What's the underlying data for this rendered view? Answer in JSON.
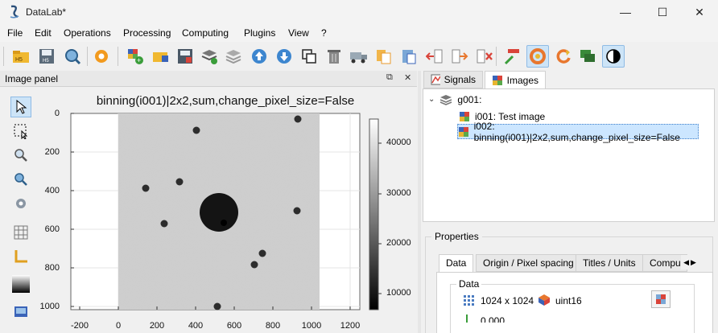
{
  "window": {
    "title": "DataLab*",
    "min": "—",
    "max": "☐",
    "close": "✕"
  },
  "menu": [
    "File",
    "Edit",
    "Operations",
    "Processing",
    "Computing",
    "Plugins",
    "View",
    "?"
  ],
  "image_panel": {
    "title": "Image panel",
    "plot_title": "binning(i001)|2x2,sum,change_pixel_size=False",
    "y_ticks": [
      "0",
      "200",
      "400",
      "600",
      "800",
      "1000"
    ],
    "x_ticks": [
      "-200",
      "0",
      "200",
      "400",
      "600",
      "800",
      "1000",
      "1200"
    ],
    "colorbar_ticks": [
      "40000",
      "30000",
      "20000",
      "10000"
    ]
  },
  "tabs": {
    "signals": "Signals",
    "images": "Images"
  },
  "tree": {
    "group": "g001:",
    "items": [
      "i001: Test image",
      "i002: binning(i001)|2x2,sum,change_pixel_size=False"
    ]
  },
  "properties": {
    "title": "Properties",
    "tabs": [
      "Data",
      "Origin / Pixel spacing",
      "Titles / Units",
      "Compu"
    ],
    "group_title": "Data",
    "size": "1024 x 1024",
    "dtype": "uint16",
    "partial": "0.000"
  }
}
